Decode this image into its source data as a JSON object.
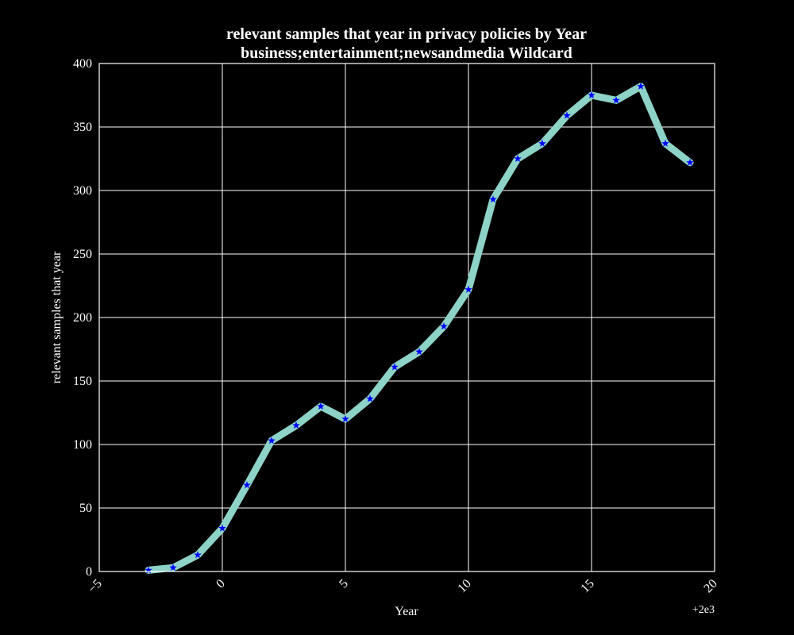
{
  "chart_data": {
    "type": "line",
    "title_line1": "relevant samples that year in privacy policies by Year",
    "title_line2": "business;entertainment;newsandmedia Wildcard",
    "xlabel": "Year",
    "ylabel": "relevant samples that year",
    "x_offset_label": "+2e3",
    "xlim": [
      -5,
      20
    ],
    "ylim": [
      0,
      400
    ],
    "x_ticks": [
      -5,
      0,
      5,
      10,
      15,
      20
    ],
    "x_tick_labels": [
      "−5",
      "0",
      "5",
      "10",
      "15",
      "20"
    ],
    "y_ticks": [
      0,
      50,
      100,
      150,
      200,
      250,
      300,
      350,
      400
    ],
    "y_tick_labels": [
      "0",
      "50",
      "100",
      "150",
      "200",
      "250",
      "300",
      "350",
      "400"
    ],
    "grid": true,
    "line_color": "#8dd3c7",
    "marker_color": "#0000ff",
    "background_color": "#000000",
    "series": [
      {
        "x": [
          -3,
          -2,
          -1,
          0,
          1,
          2,
          3,
          4,
          5,
          6,
          7,
          8,
          9,
          10,
          11,
          12,
          13,
          14,
          15,
          16,
          17,
          18,
          19
        ],
        "values": [
          1,
          3,
          13,
          34,
          68,
          103,
          115,
          130,
          120,
          136,
          161,
          173,
          193,
          222,
          293,
          325,
          337,
          359,
          375,
          371,
          382,
          337,
          322
        ]
      }
    ]
  }
}
